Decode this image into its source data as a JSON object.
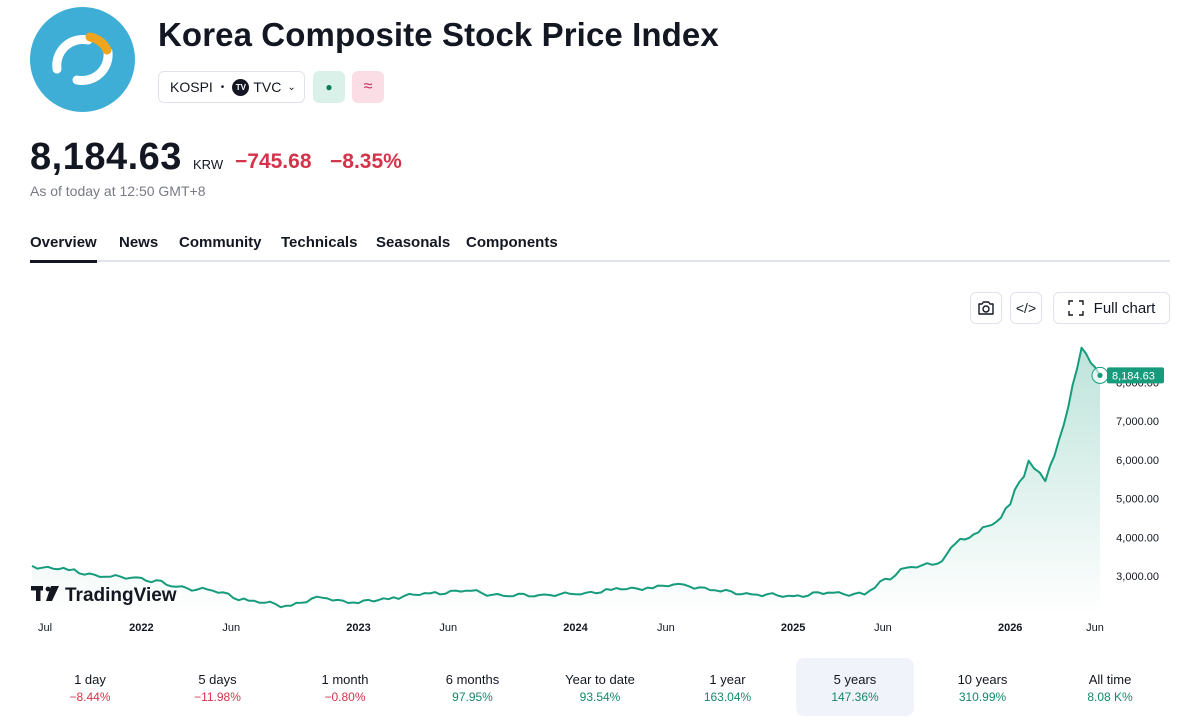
{
  "header": {
    "title": "Korea Composite Stock Price Index",
    "symbol": "KOSPI",
    "exchange": "TVC",
    "exchange_badge": "TV",
    "logo_icon": "kospi-logo",
    "status_icon": "market-open-dot",
    "wave_icon": "approx-wave-icon"
  },
  "quote": {
    "price": "8,184.63",
    "currency": "KRW",
    "change": "−745.68",
    "change_pct": "−8.35%",
    "as_of": "As of today at 12:50 GMT+8"
  },
  "tabs": [
    "Overview",
    "News",
    "Community",
    "Technicals",
    "Seasonals",
    "Components"
  ],
  "toolbar": {
    "camera_icon": "camera-icon",
    "embed_label": "</>",
    "full_chart_label": "Full chart"
  },
  "watermark": "TradingView",
  "colors": {
    "line": "#169c7c",
    "negative": "#d4344b",
    "positive": "#15886a",
    "tag": "#169c7c"
  },
  "chart_data": {
    "type": "area",
    "last_value_label": "8,184.63",
    "x_tick_labels": [
      "Jul",
      "2022",
      "Jun",
      "2023",
      "Jun",
      "2024",
      "Jun",
      "2025",
      "Jun",
      "2026",
      "Jun"
    ],
    "y_tick_labels": [
      "3,000.00",
      "4,000.00",
      "5,000.00",
      "6,000.00",
      "7,000.00",
      "8,000.00"
    ],
    "ylim": [
      2000,
      9000
    ],
    "series": [
      {
        "x": [
          "2021-07",
          "2021-09",
          "2021-11",
          "2022-01",
          "2022-03",
          "2022-05",
          "2022-07",
          "2022-09",
          "2022-11",
          "2023-01",
          "2023-03",
          "2023-05",
          "2023-07",
          "2023-09",
          "2023-11",
          "2024-01",
          "2024-03",
          "2024-05",
          "2024-07",
          "2024-09",
          "2024-11",
          "2025-01",
          "2025-03",
          "2025-05",
          "2025-07",
          "2025-09",
          "2025-10",
          "2025-11",
          "2025-12",
          "2026-01",
          "2026-02",
          "2026-03",
          "2026-04",
          "2026-05",
          "2026-06"
        ],
        "values": [
          3260,
          3150,
          2980,
          2950,
          2720,
          2620,
          2360,
          2230,
          2440,
          2300,
          2450,
          2550,
          2620,
          2490,
          2510,
          2530,
          2640,
          2700,
          2780,
          2600,
          2520,
          2480,
          2570,
          2520,
          3180,
          3320,
          3840,
          4080,
          4320,
          4850,
          5980,
          5450,
          6900,
          8900,
          8184.63
        ]
      }
    ]
  },
  "periods": [
    {
      "label": "1 day",
      "value": "−8.44%",
      "sign": "neg"
    },
    {
      "label": "5 days",
      "value": "−11.98%",
      "sign": "neg"
    },
    {
      "label": "1 month",
      "value": "−0.80%",
      "sign": "neg"
    },
    {
      "label": "6 months",
      "value": "97.95%",
      "sign": "pos"
    },
    {
      "label": "Year to date",
      "value": "93.54%",
      "sign": "pos"
    },
    {
      "label": "1 year",
      "value": "163.04%",
      "sign": "pos"
    },
    {
      "label": "5 years",
      "value": "147.36%",
      "sign": "pos",
      "selected": true
    },
    {
      "label": "10 years",
      "value": "310.99%",
      "sign": "pos"
    },
    {
      "label": "All time",
      "value": "8.08 K%",
      "sign": "pos"
    }
  ]
}
